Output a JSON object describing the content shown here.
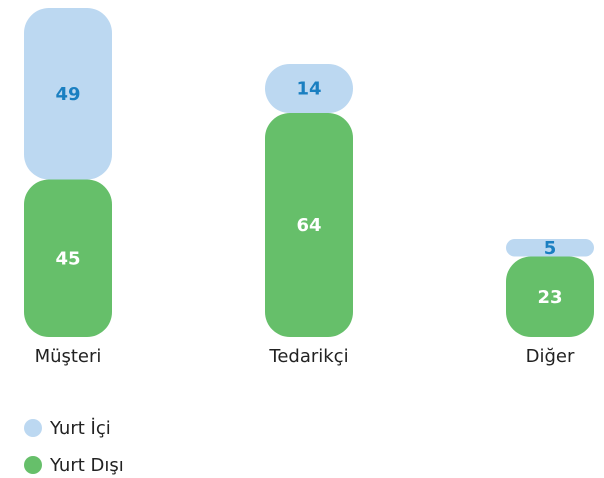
{
  "chart_data": {
    "type": "bar",
    "stacked": true,
    "categories": [
      "Müşteri",
      "Tedarikçi",
      "Diğer"
    ],
    "series": [
      {
        "name": "Yurt Dışı",
        "color": "#66bf6a",
        "values": [
          45,
          64,
          23
        ]
      },
      {
        "name": "Yurt İçi",
        "color": "#bcd8f1",
        "values": [
          49,
          14,
          5
        ]
      }
    ],
    "legend": "bottom-left"
  }
}
